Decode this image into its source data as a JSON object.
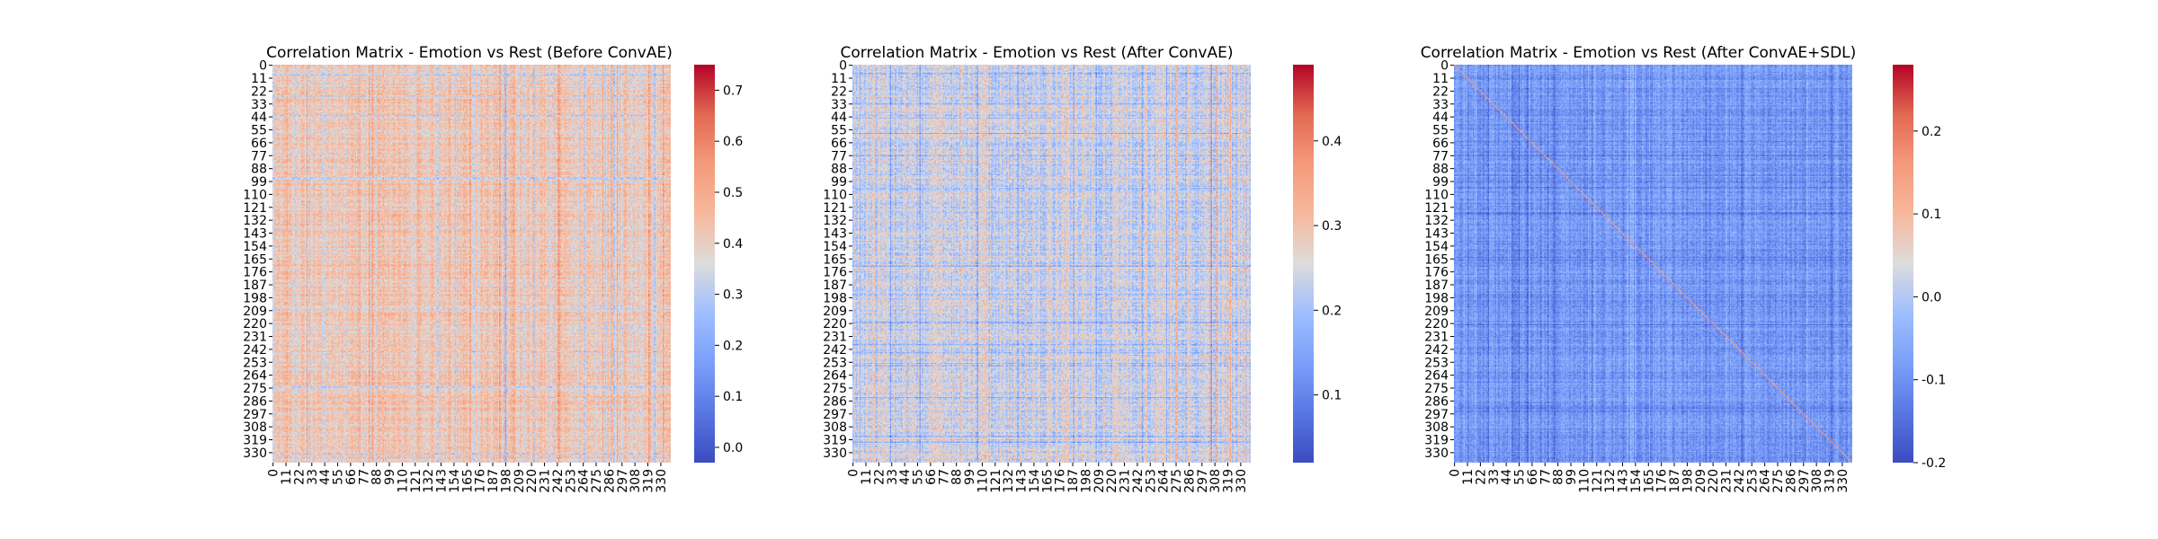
{
  "chart_data": [
    {
      "type": "heatmap",
      "title": "Correlation Matrix - Emotion vs Rest (Before ConvAE)",
      "colormap": "coolwarm",
      "n": 339,
      "ticks": [
        0,
        11,
        22,
        33,
        44,
        55,
        66,
        77,
        88,
        99,
        110,
        121,
        132,
        143,
        154,
        165,
        176,
        187,
        198,
        209,
        220,
        231,
        242,
        253,
        264,
        275,
        286,
        297,
        308,
        319,
        330
      ],
      "range": [
        -0.03,
        0.75
      ],
      "colorbar_ticks": [
        0.0,
        0.1,
        0.2,
        0.3,
        0.4,
        0.5,
        0.6,
        0.7
      ],
      "approx_mean": 0.41,
      "approx_spread": 0.07,
      "diagonal_visible": false
    },
    {
      "type": "heatmap",
      "title": "Correlation Matrix - Emotion vs Rest (After ConvAE)",
      "colormap": "coolwarm",
      "n": 339,
      "ticks": [
        0,
        11,
        22,
        33,
        44,
        55,
        66,
        77,
        88,
        99,
        110,
        121,
        132,
        143,
        154,
        165,
        176,
        187,
        198,
        209,
        220,
        231,
        242,
        253,
        264,
        275,
        286,
        297,
        308,
        319,
        330
      ],
      "range": [
        0.02,
        0.49
      ],
      "colorbar_ticks": [
        0.1,
        0.2,
        0.3,
        0.4
      ],
      "approx_mean": 0.24,
      "approx_spread": 0.05,
      "diagonal_visible": false
    },
    {
      "type": "heatmap",
      "title": "Correlation Matrix - Emotion vs Rest (After ConvAE+SDL)",
      "colormap": "coolwarm",
      "n": 339,
      "ticks": [
        0,
        11,
        22,
        33,
        44,
        55,
        66,
        77,
        88,
        99,
        110,
        121,
        132,
        143,
        154,
        165,
        176,
        187,
        198,
        209,
        220,
        231,
        242,
        253,
        264,
        275,
        286,
        297,
        308,
        319,
        330
      ],
      "range": [
        -0.2,
        0.28
      ],
      "colorbar_ticks": [
        -0.2,
        -0.1,
        0.0,
        0.1,
        0.2
      ],
      "approx_mean": -0.09,
      "approx_spread": 0.035,
      "diagonal_visible": true
    }
  ]
}
